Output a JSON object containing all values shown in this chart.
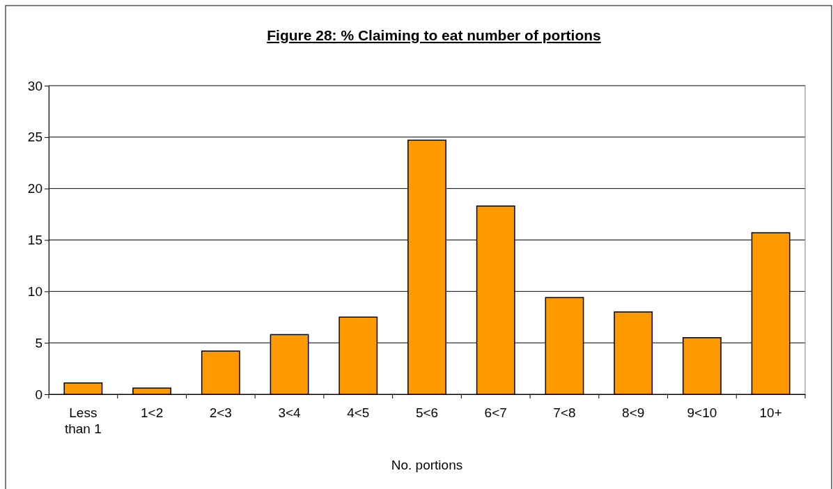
{
  "chart_data": {
    "type": "bar",
    "title": "Figure 28: % Claiming to eat number of portions",
    "xlabel": "No. portions",
    "categories": [
      "Less than 1",
      "1<2",
      "2<3",
      "3<4",
      "4<5",
      "5<6",
      "6<7",
      "7<8",
      "8<9",
      "9<10",
      "10+"
    ],
    "values": [
      1.1,
      0.6,
      4.2,
      5.8,
      7.5,
      24.7,
      18.3,
      9.4,
      8.0,
      5.5,
      15.7
    ],
    "color": "#ff9900",
    "ylim": [
      0,
      30
    ],
    "yticks": [
      0,
      5,
      10,
      15,
      20,
      25,
      30
    ],
    "grid": "y"
  }
}
